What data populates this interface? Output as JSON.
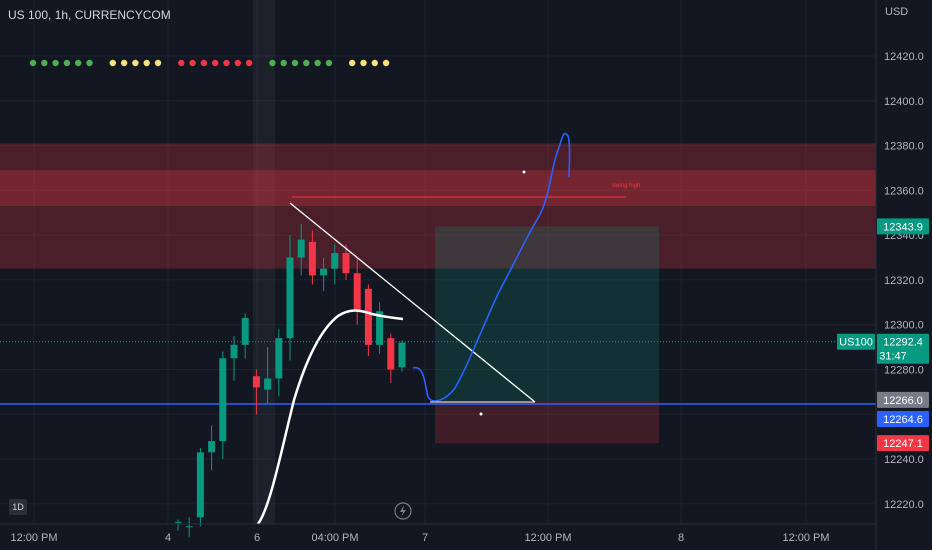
{
  "header": {
    "symbol_title": "US 100, 1h, CURRENCYCOM",
    "currency": "USD"
  },
  "interval_badge": "1D",
  "time_axis": [
    "12:00 PM",
    "4",
    "6",
    "04:00 PM",
    "7",
    "12:00 PM",
    "8",
    "12:00 PM"
  ],
  "indicator_dots": [
    {
      "color": "#4caf50",
      "count": 6
    },
    {
      "color": "#f7e07e",
      "count": 5
    },
    {
      "color": "#f23645",
      "count": 7
    },
    {
      "color": "#4caf50",
      "count": 6
    },
    {
      "color": "#f7e07e",
      "count": 4
    }
  ],
  "price_badges": {
    "target": {
      "value": "12343.9",
      "color": "#089981"
    },
    "symbol": {
      "label": "US100",
      "value": "12292.4",
      "countdown": "31:47",
      "color": "#089981"
    },
    "entry": {
      "value": "12266.0",
      "color": "#787b86"
    },
    "line": {
      "value": "12264.6",
      "color": "#2962ff"
    },
    "stop": {
      "value": "12247.1",
      "color": "#f23645"
    }
  },
  "annotations": {
    "level_label": "swing high"
  },
  "chart_data": {
    "type": "candlestick",
    "title": "US 100, 1h, CURRENCYCOM",
    "y_unit": "USD",
    "y_ticks": [
      12220,
      12240,
      12260,
      12280,
      12300,
      12320,
      12340,
      12360,
      12380,
      12400,
      12420
    ],
    "ylim": [
      12211,
      12445
    ],
    "candles": [
      {
        "o": 12212,
        "h": 12213,
        "l": 12208,
        "c": 12212
      },
      {
        "o": 12210,
        "h": 12214,
        "l": 12205,
        "c": 12210
      },
      {
        "o": 12214,
        "h": 12245,
        "l": 12210,
        "c": 12243
      },
      {
        "o": 12243,
        "h": 12255,
        "l": 12235,
        "c": 12248
      },
      {
        "o": 12248,
        "h": 12288,
        "l": 12240,
        "c": 12285
      },
      {
        "o": 12285,
        "h": 12295,
        "l": 12275,
        "c": 12291
      },
      {
        "o": 12291,
        "h": 12305,
        "l": 12285,
        "c": 12303
      },
      {
        "o": 12277,
        "h": 12280,
        "l": 12260,
        "c": 12272
      },
      {
        "o": 12271,
        "h": 12290,
        "l": 12265,
        "c": 12276
      },
      {
        "o": 12276,
        "h": 12298,
        "l": 12268,
        "c": 12294
      },
      {
        "o": 12294,
        "h": 12340,
        "l": 12284,
        "c": 12330
      },
      {
        "o": 12330,
        "h": 12345,
        "l": 12322,
        "c": 12338
      },
      {
        "o": 12337,
        "h": 12342,
        "l": 12318,
        "c": 12322
      },
      {
        "o": 12322,
        "h": 12330,
        "l": 12315,
        "c": 12325
      },
      {
        "o": 12325,
        "h": 12336,
        "l": 12318,
        "c": 12332
      },
      {
        "o": 12332,
        "h": 12336,
        "l": 12320,
        "c": 12323
      },
      {
        "o": 12323,
        "h": 12330,
        "l": 12300,
        "c": 12306
      },
      {
        "o": 12316,
        "h": 12318,
        "l": 12286,
        "c": 12291
      },
      {
        "o": 12291,
        "h": 12310,
        "l": 12287,
        "c": 12306
      },
      {
        "o": 12294,
        "h": 12296,
        "l": 12274,
        "c": 12280
      },
      {
        "o": 12281,
        "h": 12293,
        "l": 12279,
        "c": 12292
      }
    ],
    "zones": [
      {
        "from": 12325,
        "to": 12381,
        "color": "#f2364540"
      },
      {
        "from": 12353,
        "to": 12369,
        "color": "#f2364540"
      }
    ],
    "position": {
      "target": 12343.9,
      "entry": 12266.0,
      "stop": 12247.1
    },
    "horizontal_line": 12264.6,
    "swing_high": 12357,
    "current_price": 12292.4
  }
}
